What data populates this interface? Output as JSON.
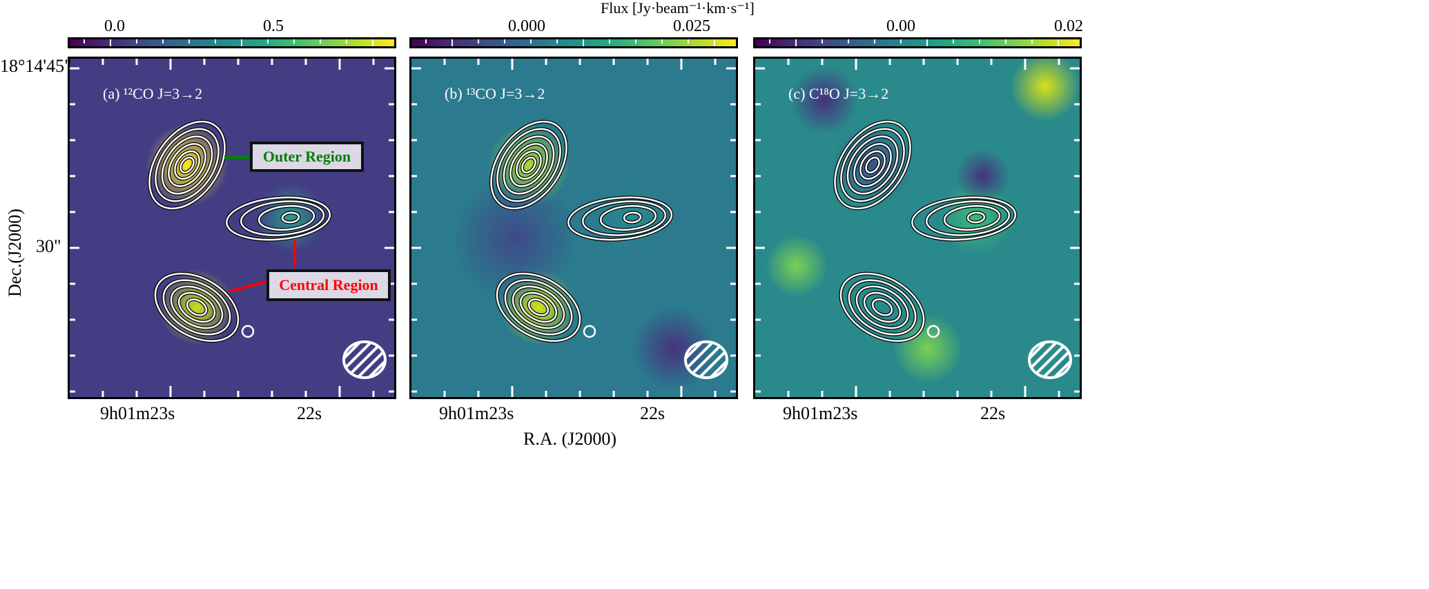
{
  "chart_data": {
    "type": "heatmap",
    "colorbar_title": "Flux [Jy·beam⁻¹·km·s⁻¹]",
    "colormap": "viridis",
    "xlabel": "R.A. (J2000)",
    "ylabel": "Dec.(J2000)",
    "x_tick_labels": [
      "9h01m23s",
      "22s"
    ],
    "y_tick_labels": [
      "18°14'45\"",
      "30\""
    ],
    "panels": [
      {
        "label": "(a) ¹²CO J=3→2",
        "colorbar_ticks": [
          "0.0",
          "0.5"
        ],
        "colorbar_range": [
          -0.15,
          0.88
        ],
        "annotations": [
          {
            "text": "Outer Region",
            "color": "#008000"
          },
          {
            "text": "Central Region",
            "color": "#ff0000"
          }
        ]
      },
      {
        "label": "(b) ¹³CO J=3→2",
        "colorbar_ticks": [
          "0.000",
          "0.025"
        ],
        "colorbar_range": [
          -0.017,
          0.032
        ]
      },
      {
        "label": "(c) C¹⁸O J=3→2",
        "colorbar_ticks": [
          "0.00",
          "0.02"
        ],
        "colorbar_range": [
          -0.016,
          0.021
        ]
      }
    ],
    "contour_color": "#ffffff",
    "beam": "hatched ellipse, lower-right"
  }
}
